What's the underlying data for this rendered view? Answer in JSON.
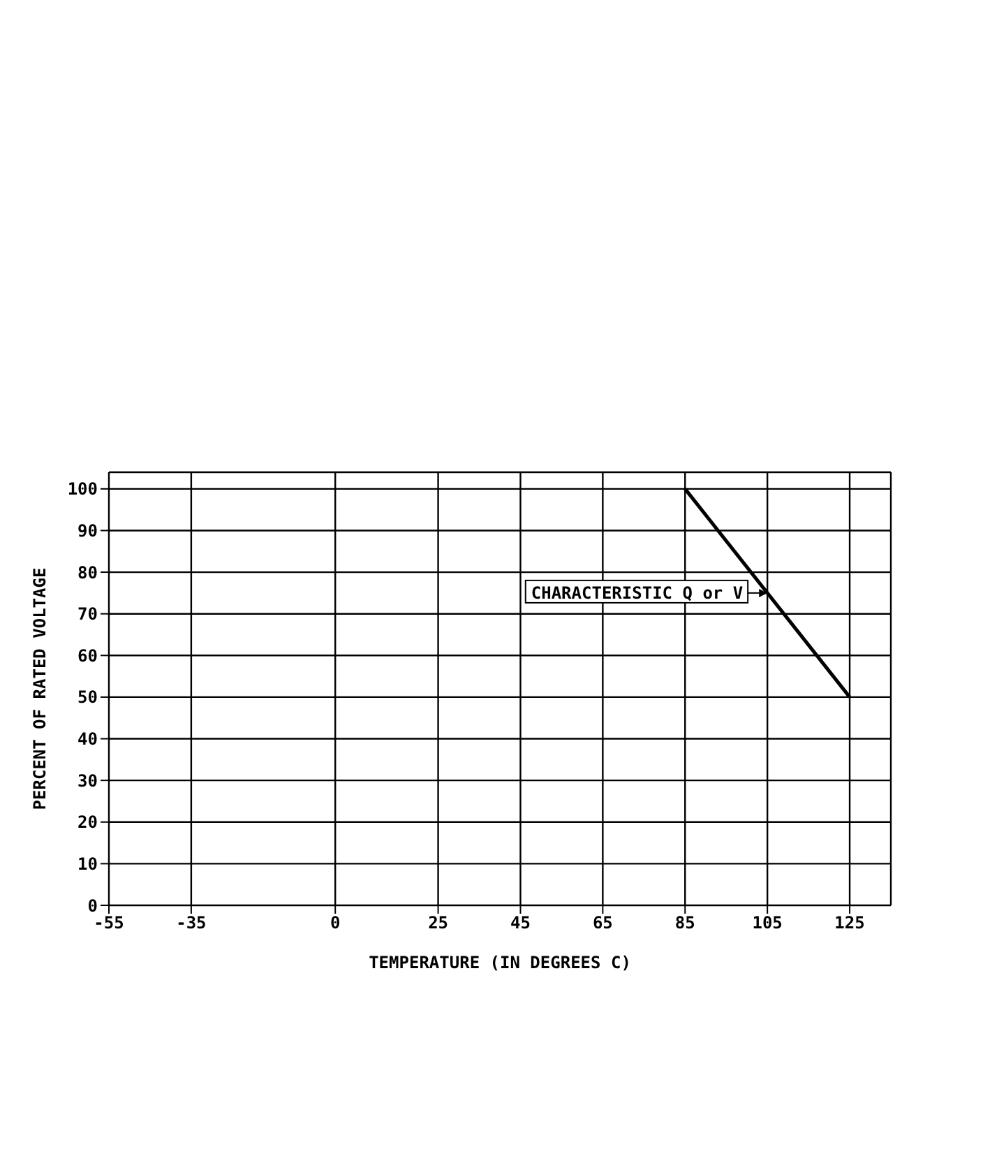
{
  "chart_data": {
    "type": "line",
    "xlabel": "TEMPERATURE (IN DEGREES C)",
    "ylabel": "PERCENT OF RATED VOLTAGE",
    "series": [
      {
        "x": [
          85,
          125
        ],
        "values": [
          100,
          50
        ],
        "color": "#000000"
      }
    ],
    "xlim": [
      -55,
      135
    ],
    "xticks": [
      -55,
      -35,
      0,
      25,
      45,
      65,
      85,
      105,
      125
    ],
    "ylim": [
      0,
      104
    ],
    "yticks": [
      0,
      10,
      20,
      30,
      40,
      50,
      60,
      70,
      80,
      90,
      100
    ],
    "grid": true,
    "marker": "none",
    "line_style": "solid",
    "annotations": [
      {
        "text": "CHARACTERISTIC Q or V",
        "x": 105,
        "y": 75
      }
    ]
  }
}
